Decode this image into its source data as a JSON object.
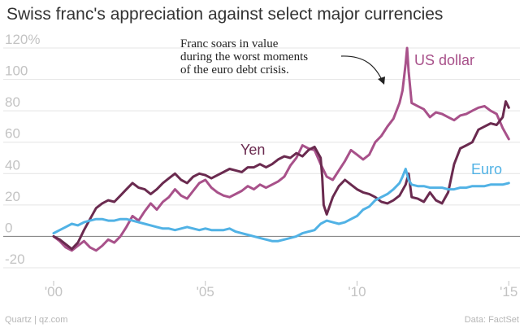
{
  "header": {
    "title": "Swiss franc's appreciation against select major currencies"
  },
  "footer": {
    "source_left": "Quartz | qz.com",
    "source_right": "Data: FactSet"
  },
  "chart_data": {
    "type": "line",
    "title": "Swiss franc's appreciation against select major currencies",
    "xlabel": "",
    "ylabel": "",
    "xlim": [
      2000,
      2015.1
    ],
    "ylim": [
      -20,
      120
    ],
    "x_ticks": [
      2000,
      2005,
      2010,
      2015
    ],
    "x_tick_labels": [
      "'00",
      "'05",
      "'10",
      "'15"
    ],
    "y_ticks": [
      -20,
      0,
      20,
      40,
      60,
      80,
      100,
      120
    ],
    "y_tick_labels": [
      "-20",
      "0",
      "20",
      "40",
      "60",
      "80",
      "100",
      "120%"
    ],
    "grid": true,
    "colors": {
      "usd": "#a8518a",
      "yen": "#6a2a4f",
      "euro": "#51b2e5"
    },
    "series": [
      {
        "name": "US dollar",
        "points": [
          [
            2000.0,
            0
          ],
          [
            2000.2,
            -3
          ],
          [
            2000.4,
            -7
          ],
          [
            2000.6,
            -9
          ],
          [
            2000.8,
            -6
          ],
          [
            2001.0,
            -3
          ],
          [
            2001.2,
            -7
          ],
          [
            2001.4,
            -9
          ],
          [
            2001.6,
            -6
          ],
          [
            2001.8,
            -2
          ],
          [
            2002.0,
            -4
          ],
          [
            2002.2,
            0
          ],
          [
            2002.4,
            6
          ],
          [
            2002.6,
            13
          ],
          [
            2002.8,
            10
          ],
          [
            2003.0,
            16
          ],
          [
            2003.2,
            21
          ],
          [
            2003.4,
            17
          ],
          [
            2003.6,
            22
          ],
          [
            2003.8,
            25
          ],
          [
            2004.0,
            30
          ],
          [
            2004.2,
            26
          ],
          [
            2004.4,
            24
          ],
          [
            2004.6,
            29
          ],
          [
            2004.8,
            34
          ],
          [
            2005.0,
            36
          ],
          [
            2005.2,
            31
          ],
          [
            2005.4,
            28
          ],
          [
            2005.6,
            26
          ],
          [
            2005.8,
            25
          ],
          [
            2006.0,
            27
          ],
          [
            2006.2,
            29
          ],
          [
            2006.4,
            32
          ],
          [
            2006.6,
            30
          ],
          [
            2006.8,
            33
          ],
          [
            2007.0,
            31
          ],
          [
            2007.2,
            33
          ],
          [
            2007.4,
            35
          ],
          [
            2007.6,
            38
          ],
          [
            2007.8,
            45
          ],
          [
            2008.0,
            50
          ],
          [
            2008.2,
            58
          ],
          [
            2008.4,
            56
          ],
          [
            2008.6,
            55
          ],
          [
            2008.8,
            46
          ],
          [
            2009.0,
            38
          ],
          [
            2009.2,
            36
          ],
          [
            2009.4,
            42
          ],
          [
            2009.6,
            48
          ],
          [
            2009.8,
            55
          ],
          [
            2010.0,
            52
          ],
          [
            2010.2,
            49
          ],
          [
            2010.4,
            52
          ],
          [
            2010.6,
            60
          ],
          [
            2010.8,
            64
          ],
          [
            2011.0,
            70
          ],
          [
            2011.2,
            75
          ],
          [
            2011.4,
            85
          ],
          [
            2011.5,
            93
          ],
          [
            2011.6,
            110
          ],
          [
            2011.65,
            120
          ],
          [
            2011.7,
            105
          ],
          [
            2011.8,
            85
          ],
          [
            2012.0,
            83
          ],
          [
            2012.2,
            81
          ],
          [
            2012.4,
            76
          ],
          [
            2012.6,
            79
          ],
          [
            2012.8,
            78
          ],
          [
            2013.0,
            76
          ],
          [
            2013.2,
            74
          ],
          [
            2013.4,
            77
          ],
          [
            2013.6,
            78
          ],
          [
            2013.8,
            80
          ],
          [
            2014.0,
            82
          ],
          [
            2014.2,
            83
          ],
          [
            2014.4,
            80
          ],
          [
            2014.6,
            78
          ],
          [
            2014.8,
            69
          ],
          [
            2015.0,
            62
          ]
        ]
      },
      {
        "name": "Yen",
        "points": [
          [
            2000.0,
            0
          ],
          [
            2000.2,
            -2
          ],
          [
            2000.4,
            -5
          ],
          [
            2000.6,
            -8
          ],
          [
            2000.8,
            -4
          ],
          [
            2001.0,
            4
          ],
          [
            2001.2,
            11
          ],
          [
            2001.4,
            18
          ],
          [
            2001.6,
            21
          ],
          [
            2001.8,
            23
          ],
          [
            2002.0,
            22
          ],
          [
            2002.2,
            26
          ],
          [
            2002.4,
            30
          ],
          [
            2002.6,
            34
          ],
          [
            2002.8,
            31
          ],
          [
            2003.0,
            30
          ],
          [
            2003.2,
            27
          ],
          [
            2003.4,
            30
          ],
          [
            2003.6,
            34
          ],
          [
            2003.8,
            37
          ],
          [
            2004.0,
            40
          ],
          [
            2004.2,
            36
          ],
          [
            2004.4,
            34
          ],
          [
            2004.6,
            38
          ],
          [
            2004.8,
            40
          ],
          [
            2005.0,
            39
          ],
          [
            2005.2,
            37
          ],
          [
            2005.4,
            39
          ],
          [
            2005.6,
            41
          ],
          [
            2005.8,
            43
          ],
          [
            2006.0,
            42
          ],
          [
            2006.2,
            41
          ],
          [
            2006.4,
            44
          ],
          [
            2006.6,
            44
          ],
          [
            2006.8,
            46
          ],
          [
            2007.0,
            44
          ],
          [
            2007.2,
            46
          ],
          [
            2007.4,
            49
          ],
          [
            2007.6,
            51
          ],
          [
            2007.8,
            50
          ],
          [
            2008.0,
            53
          ],
          [
            2008.2,
            51
          ],
          [
            2008.4,
            55
          ],
          [
            2008.6,
            57
          ],
          [
            2008.8,
            50
          ],
          [
            2008.85,
            38
          ],
          [
            2008.9,
            20
          ],
          [
            2009.0,
            14
          ],
          [
            2009.2,
            25
          ],
          [
            2009.4,
            32
          ],
          [
            2009.6,
            36
          ],
          [
            2009.8,
            33
          ],
          [
            2010.0,
            30
          ],
          [
            2010.2,
            28
          ],
          [
            2010.4,
            27
          ],
          [
            2010.6,
            25
          ],
          [
            2010.8,
            22
          ],
          [
            2011.0,
            21
          ],
          [
            2011.2,
            23
          ],
          [
            2011.4,
            26
          ],
          [
            2011.6,
            33
          ],
          [
            2011.7,
            40
          ],
          [
            2011.8,
            25
          ],
          [
            2012.0,
            24
          ],
          [
            2012.2,
            22
          ],
          [
            2012.4,
            28
          ],
          [
            2012.6,
            23
          ],
          [
            2012.8,
            21
          ],
          [
            2013.0,
            28
          ],
          [
            2013.2,
            46
          ],
          [
            2013.4,
            56
          ],
          [
            2013.6,
            58
          ],
          [
            2013.8,
            60
          ],
          [
            2014.0,
            68
          ],
          [
            2014.2,
            70
          ],
          [
            2014.4,
            72
          ],
          [
            2014.6,
            71
          ],
          [
            2014.8,
            76
          ],
          [
            2014.9,
            86
          ],
          [
            2015.0,
            82
          ]
        ]
      },
      {
        "name": "Euro",
        "points": [
          [
            2000.0,
            2
          ],
          [
            2000.2,
            4
          ],
          [
            2000.4,
            6
          ],
          [
            2000.6,
            8
          ],
          [
            2000.8,
            7
          ],
          [
            2001.0,
            9
          ],
          [
            2001.2,
            10
          ],
          [
            2001.4,
            11
          ],
          [
            2001.6,
            11
          ],
          [
            2001.8,
            10
          ],
          [
            2002.0,
            10
          ],
          [
            2002.2,
            11
          ],
          [
            2002.4,
            11
          ],
          [
            2002.6,
            10
          ],
          [
            2002.8,
            9
          ],
          [
            2003.0,
            8
          ],
          [
            2003.2,
            7
          ],
          [
            2003.4,
            6
          ],
          [
            2003.6,
            5
          ],
          [
            2003.8,
            5
          ],
          [
            2004.0,
            4
          ],
          [
            2004.2,
            5
          ],
          [
            2004.4,
            6
          ],
          [
            2004.6,
            5
          ],
          [
            2004.8,
            4
          ],
          [
            2005.0,
            5
          ],
          [
            2005.2,
            4
          ],
          [
            2005.4,
            4
          ],
          [
            2005.6,
            4
          ],
          [
            2005.8,
            5
          ],
          [
            2006.0,
            3
          ],
          [
            2006.2,
            2
          ],
          [
            2006.4,
            1
          ],
          [
            2006.6,
            0
          ],
          [
            2006.8,
            -1
          ],
          [
            2007.0,
            -2
          ],
          [
            2007.2,
            -3
          ],
          [
            2007.4,
            -3
          ],
          [
            2007.6,
            -2
          ],
          [
            2007.8,
            -1
          ],
          [
            2008.0,
            0
          ],
          [
            2008.2,
            2
          ],
          [
            2008.4,
            3
          ],
          [
            2008.6,
            4
          ],
          [
            2008.8,
            8
          ],
          [
            2009.0,
            10
          ],
          [
            2009.2,
            9
          ],
          [
            2009.4,
            8
          ],
          [
            2009.6,
            9
          ],
          [
            2009.8,
            11
          ],
          [
            2010.0,
            13
          ],
          [
            2010.2,
            17
          ],
          [
            2010.4,
            19
          ],
          [
            2010.6,
            23
          ],
          [
            2010.8,
            25
          ],
          [
            2011.0,
            27
          ],
          [
            2011.2,
            30
          ],
          [
            2011.4,
            34
          ],
          [
            2011.5,
            38
          ],
          [
            2011.6,
            43
          ],
          [
            2011.7,
            36
          ],
          [
            2011.8,
            33
          ],
          [
            2012.0,
            32
          ],
          [
            2012.2,
            32
          ],
          [
            2012.4,
            31
          ],
          [
            2012.6,
            31
          ],
          [
            2012.8,
            31
          ],
          [
            2013.0,
            30
          ],
          [
            2013.2,
            30
          ],
          [
            2013.4,
            31
          ],
          [
            2013.6,
            31
          ],
          [
            2013.8,
            32
          ],
          [
            2014.0,
            32
          ],
          [
            2014.2,
            32
          ],
          [
            2014.4,
            33
          ],
          [
            2014.6,
            33
          ],
          [
            2014.8,
            33
          ],
          [
            2015.0,
            34
          ]
        ]
      }
    ],
    "annotations": [
      {
        "lines": [
          "Franc soars in value",
          "during the worst moments",
          "of the euro debt crisis."
        ]
      }
    ]
  }
}
